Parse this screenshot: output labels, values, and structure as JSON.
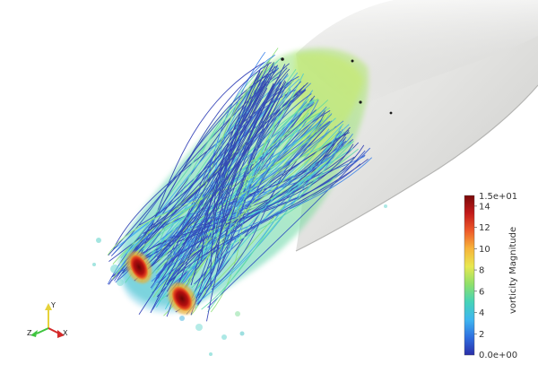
{
  "colorbar": {
    "title": "vorticity Magnitude",
    "max_label": "1.5e+01",
    "min_label": "0.0e+00",
    "tick_labels": [
      "14",
      "12",
      "10",
      "8",
      "6",
      "4",
      "2"
    ],
    "min_value": 0,
    "max_value": 15,
    "colormap": [
      "#2a2ea8",
      "#2f6fe0",
      "#3fb6f0",
      "#46d3b8",
      "#8fe06a",
      "#e8e850",
      "#f7b43a",
      "#ee5a2a",
      "#c31a1a",
      "#7a0a0a"
    ]
  },
  "axes": {
    "y_label": "Y",
    "z_label": "Z",
    "x_label": "X",
    "y_color": "#e6d23a",
    "z_color": "#3fc43f",
    "x_color": "#d42a2a"
  },
  "icons": {
    "orientation": "orientation-axes-icon"
  }
}
